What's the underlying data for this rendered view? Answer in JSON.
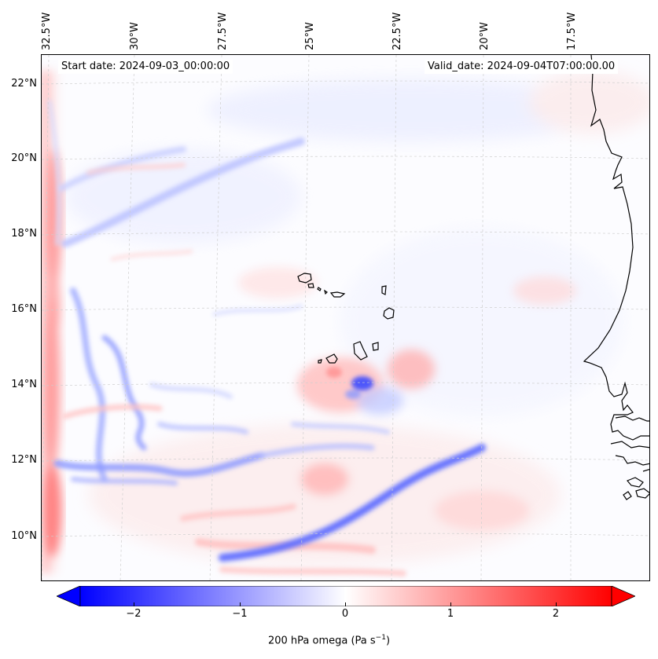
{
  "map": {
    "header": {
      "start_date": "Start date: 2024-09-03_00:00:00",
      "valid_date": "Valid_date: 2024-09-04T07:00:00.00"
    },
    "lon_labels": [
      "32.5°W",
      "30°W",
      "27.5°W",
      "25°W",
      "22.5°W",
      "20°W",
      "17.5°W"
    ],
    "lat_labels": [
      "22°N",
      "20°N",
      "18°N",
      "16°N",
      "14°N",
      "12°N",
      "10°N"
    ],
    "field": "200 hPa omega",
    "islands": "Cape Verde",
    "coast": "West Africa (Senegal / Guinea-Bissau)"
  },
  "colorbar": {
    "ticks": [
      "−2",
      "−1",
      "0",
      "1",
      "2"
    ],
    "label_main": "200 hPa omega (Pa s",
    "label_sup": "−1",
    "label_end": ")",
    "min_color": "#0000ff",
    "mid_color": "#ffffff",
    "max_color": "#ff0000",
    "range": [
      -2.75,
      2.75
    ]
  }
}
